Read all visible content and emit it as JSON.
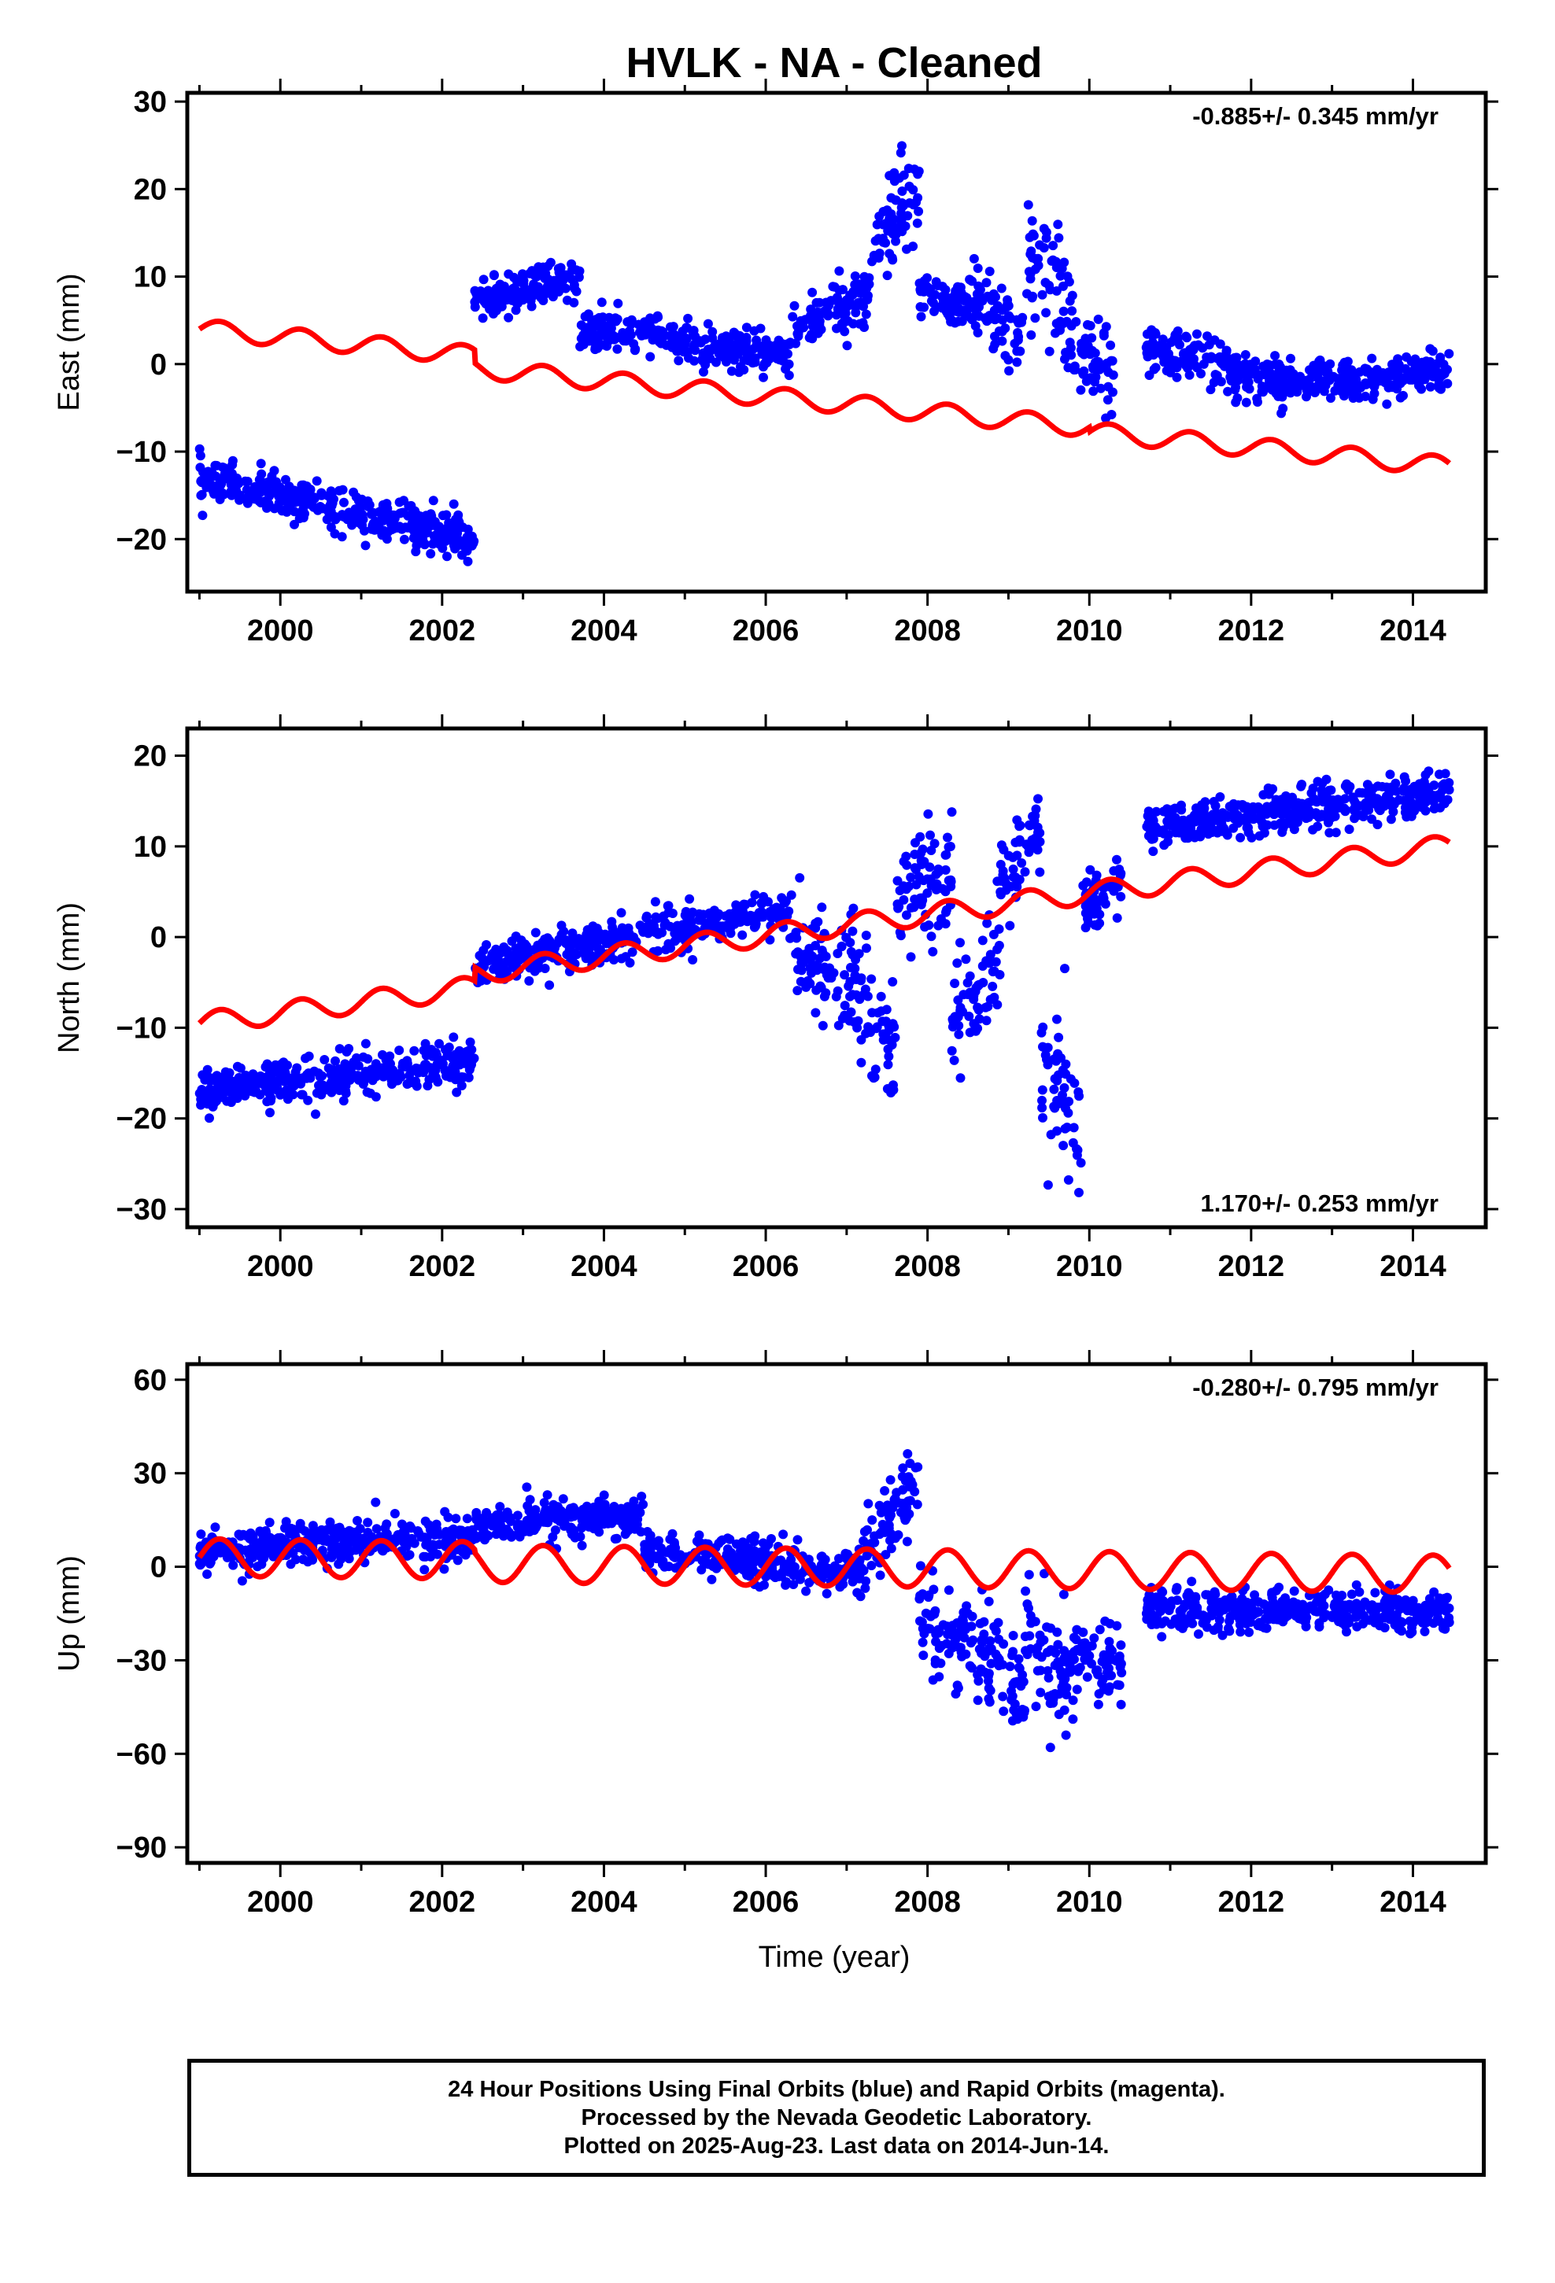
{
  "chart_data": {
    "type": "scatter",
    "title": "HVLK  - NA - Cleaned",
    "xlabel": "Time (year)",
    "xlim": [
      1998.85,
      2014.9
    ],
    "x_ticks": [
      "2000",
      "2002",
      "2004",
      "2006",
      "2008",
      "2010",
      "2012",
      "2014"
    ],
    "colors": {
      "observations": "#0000ff",
      "model": "#ff0000"
    },
    "panels": [
      {
        "ylabel": "East (mm)",
        "ylim": [
          -26,
          31
        ],
        "y_ticks": [
          "30",
          "20",
          "10",
          "0",
          "−10",
          "−20"
        ],
        "rate_label": "-0.885+/- 0.345 mm/yr",
        "rate_position": "top-right",
        "model": {
          "y0": 4.0,
          "x0": 1999.0,
          "slope": -0.885,
          "amplitude": 1.1,
          "jumps": [
            [
              2002.4,
              -1.5
            ],
            [
              2010.0,
              -0.5
            ]
          ]
        },
        "segments": [
          {
            "x": [
              1999.0,
              2002.4
            ],
            "y": [
              -13,
              -20
            ],
            "spread": 2.2
          },
          {
            "x": [
              2002.4,
              2003.7
            ],
            "y": [
              7,
              10
            ],
            "spread": 2.0
          },
          {
            "x": [
              2003.7,
              2006.3
            ],
            "y": [
              4,
              1
            ],
            "spread": 2.0
          },
          {
            "x": [
              2006.3,
              2007.3
            ],
            "y": [
              4,
              8
            ],
            "spread": 3.0
          },
          {
            "x": [
              2007.3,
              2007.9
            ],
            "y": [
              12,
              22
            ],
            "spread": 5.0
          },
          {
            "x": [
              2007.9,
              2008.5
            ],
            "y": [
              8,
              6
            ],
            "spread": 2.5
          },
          {
            "x": [
              2008.5,
              2009.2
            ],
            "y": [
              8,
              2
            ],
            "spread": 4.0
          },
          {
            "x": [
              2009.2,
              2009.8
            ],
            "y": [
              12,
              5
            ],
            "spread": 7.0
          },
          {
            "x": [
              2009.8,
              2010.3
            ],
            "y": [
              2,
              -1
            ],
            "spread": 4.0
          },
          {
            "x": [
              2010.7,
              2012.3
            ],
            "y": [
              2,
              -2
            ],
            "spread": 2.5
          },
          {
            "x": [
              2012.3,
              2014.45
            ],
            "y": [
              -2,
              -1
            ],
            "spread": 2.0
          }
        ]
      },
      {
        "ylabel": "North (mm)",
        "ylim": [
          -32,
          23
        ],
        "y_ticks": [
          "20",
          "10",
          "0",
          "−10",
          "−20",
          "−30"
        ],
        "rate_label": "1.170+/- 0.253 mm/yr",
        "rate_position": "bottom-right",
        "model": {
          "y0": -9.5,
          "x0": 1999.0,
          "slope": 1.17,
          "amplitude": 1.2,
          "jumps": [
            [
              2002.4,
              1.5
            ]
          ]
        },
        "segments": [
          {
            "x": [
              1999.0,
              2002.4
            ],
            "y": [
              -17,
              -14
            ],
            "spread": 2.3
          },
          {
            "x": [
              2002.4,
              2006.3
            ],
            "y": [
              -3,
              3
            ],
            "spread": 2.0
          },
          {
            "x": [
              2006.3,
              2006.9
            ],
            "y": [
              0,
              -5
            ],
            "spread": 5.0
          },
          {
            "x": [
              2006.9,
              2007.6
            ],
            "y": [
              -4,
              -12
            ],
            "spread": 8.0
          },
          {
            "x": [
              2007.6,
              2008.3
            ],
            "y": [
              4,
              8
            ],
            "spread": 5.0
          },
          {
            "x": [
              2008.3,
              2008.9
            ],
            "y": [
              -10,
              -2
            ],
            "spread": 6.0
          },
          {
            "x": [
              2008.9,
              2009.4
            ],
            "y": [
              6,
              12
            ],
            "spread": 4.0
          },
          {
            "x": [
              2009.4,
              2009.9
            ],
            "y": [
              -15,
              -22
            ],
            "spread": 8.0
          },
          {
            "x": [
              2009.9,
              2010.4
            ],
            "y": [
              3,
              6
            ],
            "spread": 3.0
          },
          {
            "x": [
              2010.7,
              2014.45
            ],
            "y": [
              12,
              16
            ],
            "spread": 2.2
          }
        ]
      },
      {
        "ylabel": "Up (mm)",
        "ylim": [
          -95,
          65
        ],
        "y_ticks": [
          "60",
          "30",
          "0",
          "−30",
          "−60",
          "−90"
        ],
        "rate_label": "-0.280+/- 0.795 mm/yr",
        "rate_position": "top-right",
        "model": {
          "y0": 3.0,
          "x0": 1999.0,
          "slope": -0.28,
          "amplitude": 6.0,
          "jumps": [
            [
              2002.4,
              -1.0
            ]
          ]
        },
        "segments": [
          {
            "x": [
              1999.0,
              2002.4
            ],
            "y": [
              5,
              10
            ],
            "spread": 6.0
          },
          {
            "x": [
              2002.4,
              2004.5
            ],
            "y": [
              14,
              16
            ],
            "spread": 6.0
          },
          {
            "x": [
              2004.5,
              2007.2
            ],
            "y": [
              5,
              -2
            ],
            "spread": 6.0
          },
          {
            "x": [
              2007.2,
              2007.9
            ],
            "y": [
              5,
              25
            ],
            "spread": 12.0
          },
          {
            "x": [
              2007.9,
              2008.4
            ],
            "y": [
              -15,
              -25
            ],
            "spread": 12.0
          },
          {
            "x": [
              2008.4,
              2009.2
            ],
            "y": [
              -20,
              -40
            ],
            "spread": 14.0
          },
          {
            "x": [
              2009.2,
              2009.8
            ],
            "y": [
              -20,
              -40
            ],
            "spread": 18.0
          },
          {
            "x": [
              2009.8,
              2010.4
            ],
            "y": [
              -25,
              -35
            ],
            "spread": 10.0
          },
          {
            "x": [
              2010.7,
              2014.45
            ],
            "y": [
              -14,
              -14
            ],
            "spread": 6.0
          }
        ]
      }
    ]
  },
  "caption": {
    "line1": "24 Hour Positions Using Final Orbits (blue) and Rapid Orbits (magenta).",
    "line2": "Processed by the Nevada Geodetic Laboratory.",
    "line3": "Plotted on 2025-Aug-23. Last data on 2014-Jun-14."
  }
}
